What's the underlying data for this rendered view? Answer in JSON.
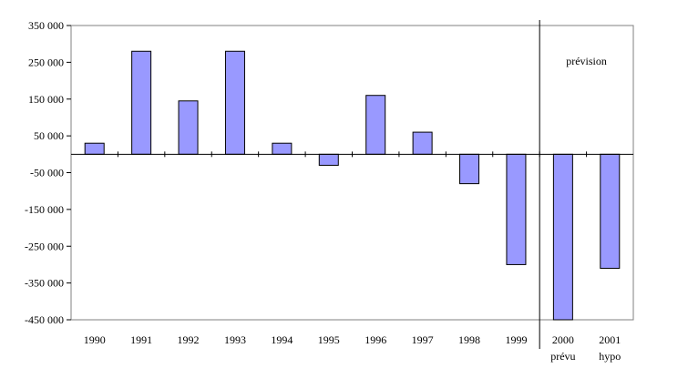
{
  "chart_data": {
    "type": "bar",
    "categories": [
      "1990",
      "1991",
      "1992",
      "1993",
      "1994",
      "1995",
      "1996",
      "1997",
      "1998",
      "1999",
      "2000",
      "2001"
    ],
    "category_sublabels": [
      "",
      "",
      "",
      "",
      "",
      "",
      "",
      "",
      "",
      "",
      "prévu",
      "hypo"
    ],
    "values": [
      30000,
      280000,
      145000,
      280000,
      30000,
      -30000,
      160000,
      60000,
      -80000,
      -300000,
      -450000,
      -310000
    ],
    "ylim": [
      -450000,
      350000
    ],
    "yticks": [
      350000,
      250000,
      150000,
      50000,
      -50000,
      -150000,
      -250000,
      -350000,
      -450000
    ],
    "ytick_labels": [
      "350 000",
      "250 000",
      "150 000",
      "50 000",
      "-50 000",
      "-150 000",
      "-250 000",
      "-350 000",
      "-450 000"
    ],
    "annotation": "prévision",
    "forecast_start_category": "2000",
    "bar_color": "#9999ff",
    "bar_edge_color": "#000000",
    "grid": false,
    "title": "",
    "xlabel": "",
    "ylabel": ""
  }
}
